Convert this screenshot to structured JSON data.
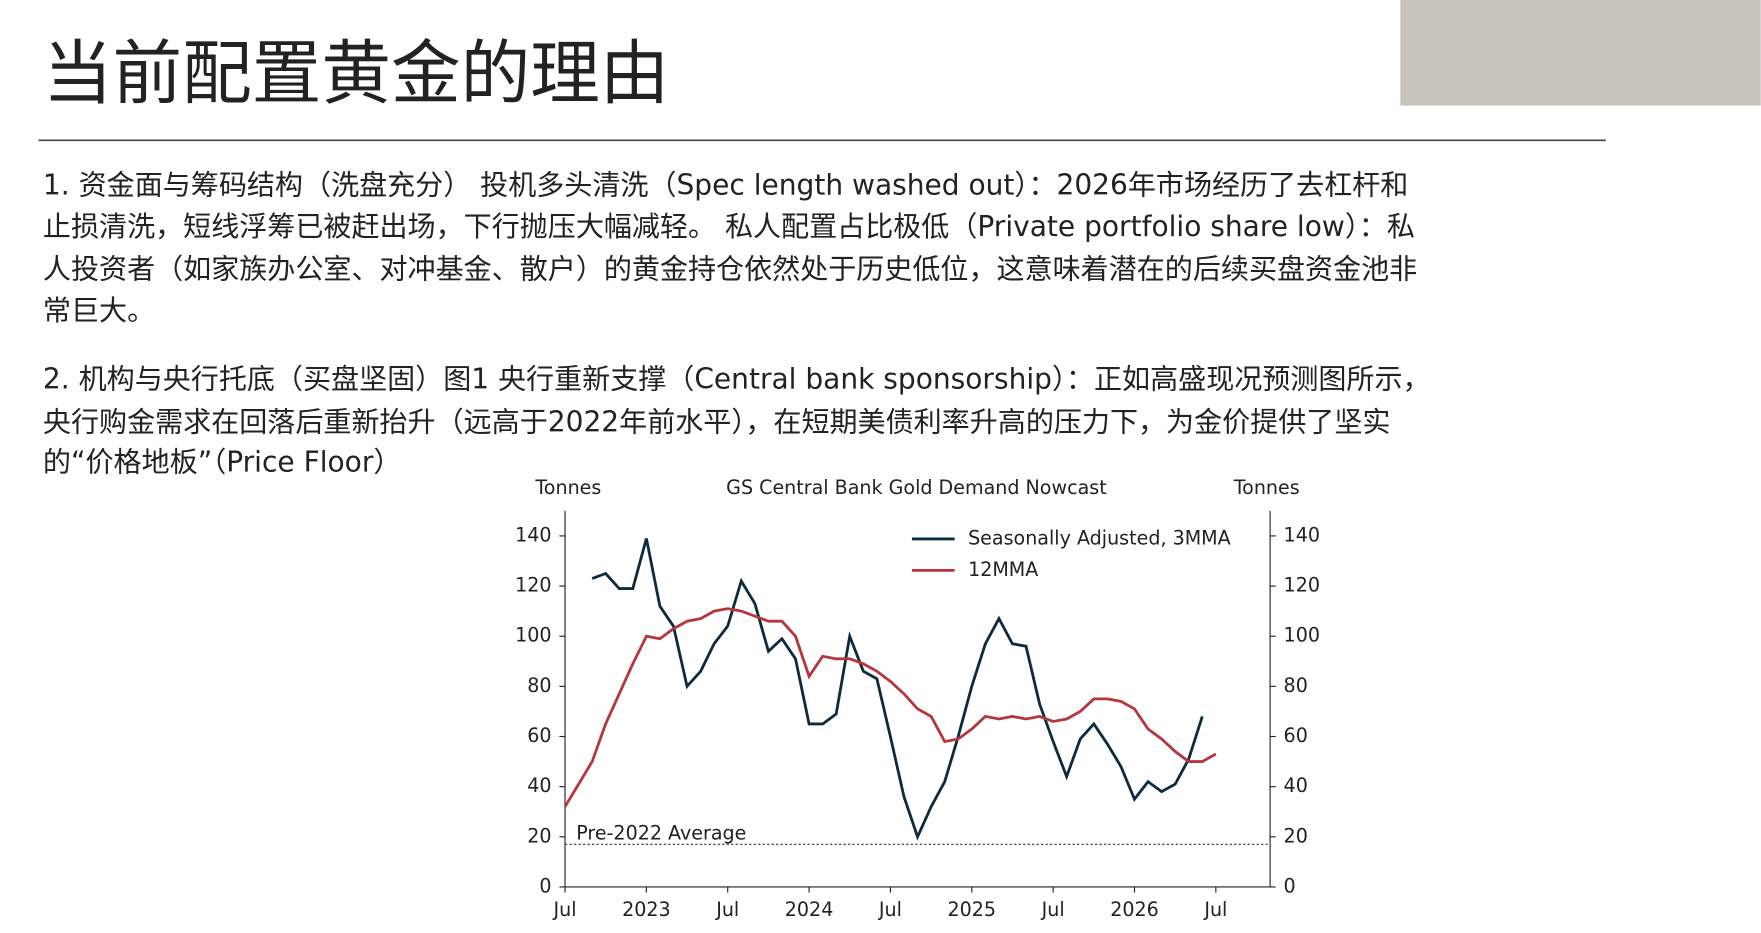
{
  "slide": {
    "title": "当前配置黄金的理由",
    "paragraphs": [
      [
        "1. 资金面与筹码结构（洗盘充分） 投机多头清洗（Spec length washed out）：2026年市场经历了去杠杆和",
        "止损清洗，短线浮筹已被赶出场，下行抛压大幅减轻。 私人配置占比极低（Private portfolio share low）：私",
        "人投资者（如家族办公室、对冲基金、散户）的黄金持仓依然处于历史低位，这意味着潜在的后续买盘资金池非",
        "常巨大。"
      ],
      [
        " 2. 机构与央行托底（买盘坚固）图1 央行重新支撑（Central bank sponsorship）：正如高盛现况预测图所示，",
        "央行购金需求在回落后重新抬升（远高于2022年前水平），在短期美债利率升高的压力下，为金价提供了坚实",
        "的“价格地板”（Price Floor）"
      ]
    ]
  },
  "chart_data": {
    "type": "line",
    "title": "GS Central Bank Gold Demand Nowcast",
    "y_label": "Tonnes",
    "y2_label": "Tonnes",
    "xlim": [
      "2022-07",
      "2026-11"
    ],
    "xticks": [
      {
        "value": "2022-07",
        "label": "Jul"
      },
      {
        "value": "2023-01",
        "label": "2023"
      },
      {
        "value": "2023-07",
        "label": "Jul"
      },
      {
        "value": "2024-01",
        "label": "2024"
      },
      {
        "value": "2024-07",
        "label": "Jul"
      },
      {
        "value": "2025-01",
        "label": "2025"
      },
      {
        "value": "2025-07",
        "label": "Jul"
      },
      {
        "value": "2026-01",
        "label": "2026"
      },
      {
        "value": "2026-07",
        "label": "Jul"
      }
    ],
    "ylim": [
      0,
      150
    ],
    "yticks": [
      0,
      20,
      40,
      60,
      80,
      100,
      120,
      140
    ],
    "y2lim": [
      0,
      150
    ],
    "y2ticks": [
      0,
      20,
      40,
      60,
      80,
      100,
      120,
      140
    ],
    "legend": "upper right",
    "reference_line": {
      "value": 17,
      "label": "Pre-2022 Average"
    },
    "series": [
      {
        "name": "Seasonally Adjusted, 3MMA",
        "color": "#0d2b3e",
        "x": [
          "2022-09",
          "2022-10",
          "2022-11",
          "2022-12",
          "2023-01",
          "2023-02",
          "2023-03",
          "2023-04",
          "2023-05",
          "2023-06",
          "2023-07",
          "2023-08",
          "2023-09",
          "2023-10",
          "2023-11",
          "2023-12",
          "2024-01",
          "2024-02",
          "2024-03",
          "2024-04",
          "2024-05",
          "2024-06",
          "2024-07",
          "2024-08",
          "2024-09",
          "2024-10",
          "2024-11",
          "2024-12",
          "2025-01",
          "2025-02",
          "2025-03",
          "2025-04",
          "2025-05",
          "2025-06",
          "2025-07",
          "2025-08",
          "2025-09",
          "2025-10",
          "2025-11",
          "2025-12",
          "2026-01",
          "2026-02",
          "2026-03",
          "2026-04",
          "2026-05",
          "2026-06"
        ],
        "values": [
          123,
          125,
          119,
          119,
          139,
          112,
          104,
          80,
          86,
          97,
          104,
          122,
          113,
          94,
          99,
          91,
          65,
          65,
          69,
          100,
          86,
          83,
          60,
          36,
          20,
          32,
          42,
          60,
          80,
          97,
          107,
          97,
          96,
          73,
          58,
          44,
          59,
          65,
          57,
          48,
          35,
          42,
          38,
          41,
          51,
          68
        ]
      },
      {
        "name": "12MMA",
        "color": "#b5363e",
        "x": [
          "2022-07",
          "2022-08",
          "2022-09",
          "2022-10",
          "2022-11",
          "2022-12",
          "2023-01",
          "2023-02",
          "2023-03",
          "2023-04",
          "2023-05",
          "2023-06",
          "2023-07",
          "2023-08",
          "2023-09",
          "2023-10",
          "2023-11",
          "2023-12",
          "2024-01",
          "2024-02",
          "2024-03",
          "2024-04",
          "2024-05",
          "2024-06",
          "2024-07",
          "2024-08",
          "2024-09",
          "2024-10",
          "2024-11",
          "2024-12",
          "2025-01",
          "2025-02",
          "2025-03",
          "2025-04",
          "2025-05",
          "2025-06",
          "2025-07",
          "2025-08",
          "2025-09",
          "2025-10",
          "2025-11",
          "2025-12",
          "2026-01",
          "2026-02",
          "2026-03",
          "2026-04",
          "2026-05",
          "2026-06",
          "2026-07"
        ],
        "values": [
          32,
          41,
          50,
          65,
          77,
          89,
          100,
          99,
          103,
          106,
          107,
          110,
          111,
          110,
          108,
          106,
          106,
          100,
          84,
          92,
          91,
          91,
          89,
          86,
          82,
          77,
          71,
          68,
          58,
          59,
          63,
          68,
          67,
          68,
          67,
          68,
          66,
          67,
          70,
          75,
          75,
          74,
          71,
          63,
          59,
          54,
          50,
          50,
          53
        ]
      }
    ]
  }
}
